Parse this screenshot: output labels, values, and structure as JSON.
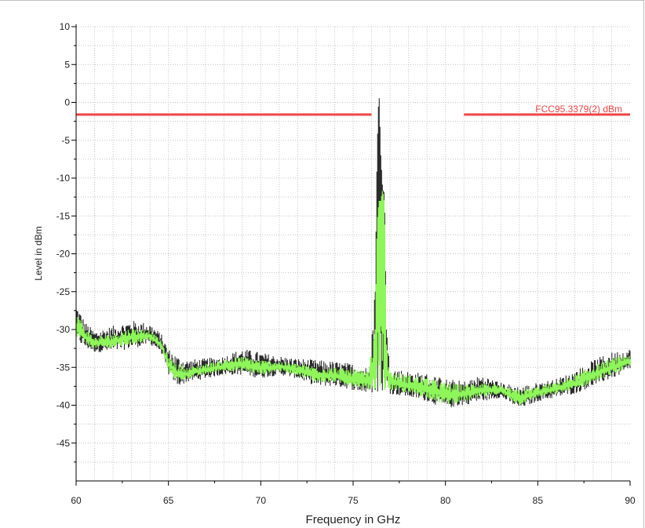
{
  "chart_data": {
    "type": "line",
    "xlabel": "Frequency in GHz",
    "ylabel": "Level in dBm",
    "xlim": [
      60,
      90
    ],
    "ylim": [
      -50,
      10
    ],
    "x_ticks": [
      60,
      65,
      70,
      75,
      80,
      85,
      90
    ],
    "x_tick_labels": [
      "60",
      "65",
      "70",
      "75",
      "80",
      "85",
      "90"
    ],
    "y_ticks": [
      10,
      5,
      0,
      -5,
      -10,
      -15,
      -20,
      -25,
      -30,
      -35,
      -40,
      -45
    ],
    "y_tick_labels": [
      "10",
      "5",
      "0",
      "-5",
      "-10",
      "-15",
      "-20",
      "-25",
      "-30",
      "-35",
      "-40",
      "-45"
    ],
    "grid": true,
    "limit_line": {
      "label": "FCC95.3379(2) dBm",
      "value": -1.6,
      "segments": [
        [
          60,
          76.0
        ],
        [
          81.0,
          90
        ]
      ],
      "color": "#ef4444"
    },
    "series": [
      {
        "color": "#2b2b2b",
        "x": [
          60,
          60.5,
          61,
          62,
          63,
          64,
          64.6,
          65,
          65.5,
          66,
          67,
          68,
          69,
          70,
          71,
          72,
          73,
          74,
          75,
          75.8,
          76.2,
          76.3,
          76.4,
          76.5,
          76.6,
          76.7,
          76.8,
          77,
          78,
          79,
          80,
          81,
          82,
          83,
          84,
          85,
          86,
          87,
          88,
          89,
          90
        ],
        "max": [
          -26.5,
          -29.0,
          -30.2,
          -29.5,
          -28.8,
          -29.2,
          -30.5,
          -32.5,
          -33.5,
          -34.0,
          -33.8,
          -33.5,
          -32.5,
          -33.0,
          -33.5,
          -33.8,
          -34.0,
          -34.2,
          -34.5,
          -35.0,
          -25.0,
          -6.5,
          1.8,
          -7.0,
          -11.5,
          -12.0,
          -30.0,
          -35.0,
          -35.5,
          -35.8,
          -36.5,
          -36.8,
          -36.0,
          -37.0,
          -37.5,
          -37.0,
          -36.5,
          -35.5,
          -34.0,
          -33.0,
          -32.5
        ],
        "min": [
          -31.5,
          -32.5,
          -33.0,
          -33.0,
          -32.5,
          -32.0,
          -33.0,
          -36.0,
          -37.5,
          -37.0,
          -36.5,
          -36.0,
          -36.0,
          -36.5,
          -36.0,
          -36.5,
          -37.5,
          -37.5,
          -38.0,
          -38.5,
          -38.5,
          -38.5,
          -38.5,
          -38.5,
          -38.5,
          -38.5,
          -38.5,
          -38.5,
          -39.0,
          -39.5,
          -40.5,
          -40.0,
          -39.5,
          -39.0,
          -40.5,
          -39.5,
          -39.0,
          -38.5,
          -37.5,
          -36.5,
          -35.5
        ]
      },
      {
        "color": "#8ef55a",
        "x": [
          60,
          60.5,
          61,
          62,
          63,
          64,
          64.6,
          65,
          65.5,
          66,
          67,
          68,
          69,
          70,
          71,
          72,
          73,
          74,
          75,
          75.8,
          76.2,
          76.3,
          76.4,
          76.5,
          76.6,
          76.7,
          76.8,
          77,
          78,
          79,
          80,
          81,
          82,
          83,
          84,
          85,
          86,
          87,
          88,
          89,
          90
        ],
        "max": [
          -27.5,
          -29.8,
          -31.0,
          -30.5,
          -29.8,
          -30.0,
          -31.5,
          -33.5,
          -34.5,
          -35.0,
          -34.5,
          -34.0,
          -33.5,
          -34.0,
          -34.2,
          -34.5,
          -34.8,
          -35.0,
          -35.2,
          -35.5,
          -30.0,
          -16.0,
          -13.0,
          -13.0,
          -11.5,
          -13.5,
          -32.0,
          -35.5,
          -36.0,
          -36.3,
          -37.0,
          -37.3,
          -36.8,
          -37.5,
          -38.0,
          -37.5,
          -37.0,
          -36.0,
          -34.8,
          -33.8,
          -33.2
        ],
        "min": [
          -31.0,
          -32.0,
          -32.5,
          -32.5,
          -32.0,
          -31.5,
          -32.5,
          -35.5,
          -37.0,
          -36.5,
          -36.0,
          -35.5,
          -35.5,
          -36.0,
          -35.5,
          -36.0,
          -37.0,
          -37.0,
          -37.5,
          -38.0,
          -38.0,
          -38.0,
          -38.0,
          -38.0,
          -38.0,
          -38.0,
          -38.0,
          -38.0,
          -38.5,
          -39.0,
          -40.0,
          -39.5,
          -39.0,
          -38.5,
          -40.0,
          -39.0,
          -38.5,
          -38.0,
          -37.0,
          -36.0,
          -35.0
        ]
      }
    ]
  }
}
